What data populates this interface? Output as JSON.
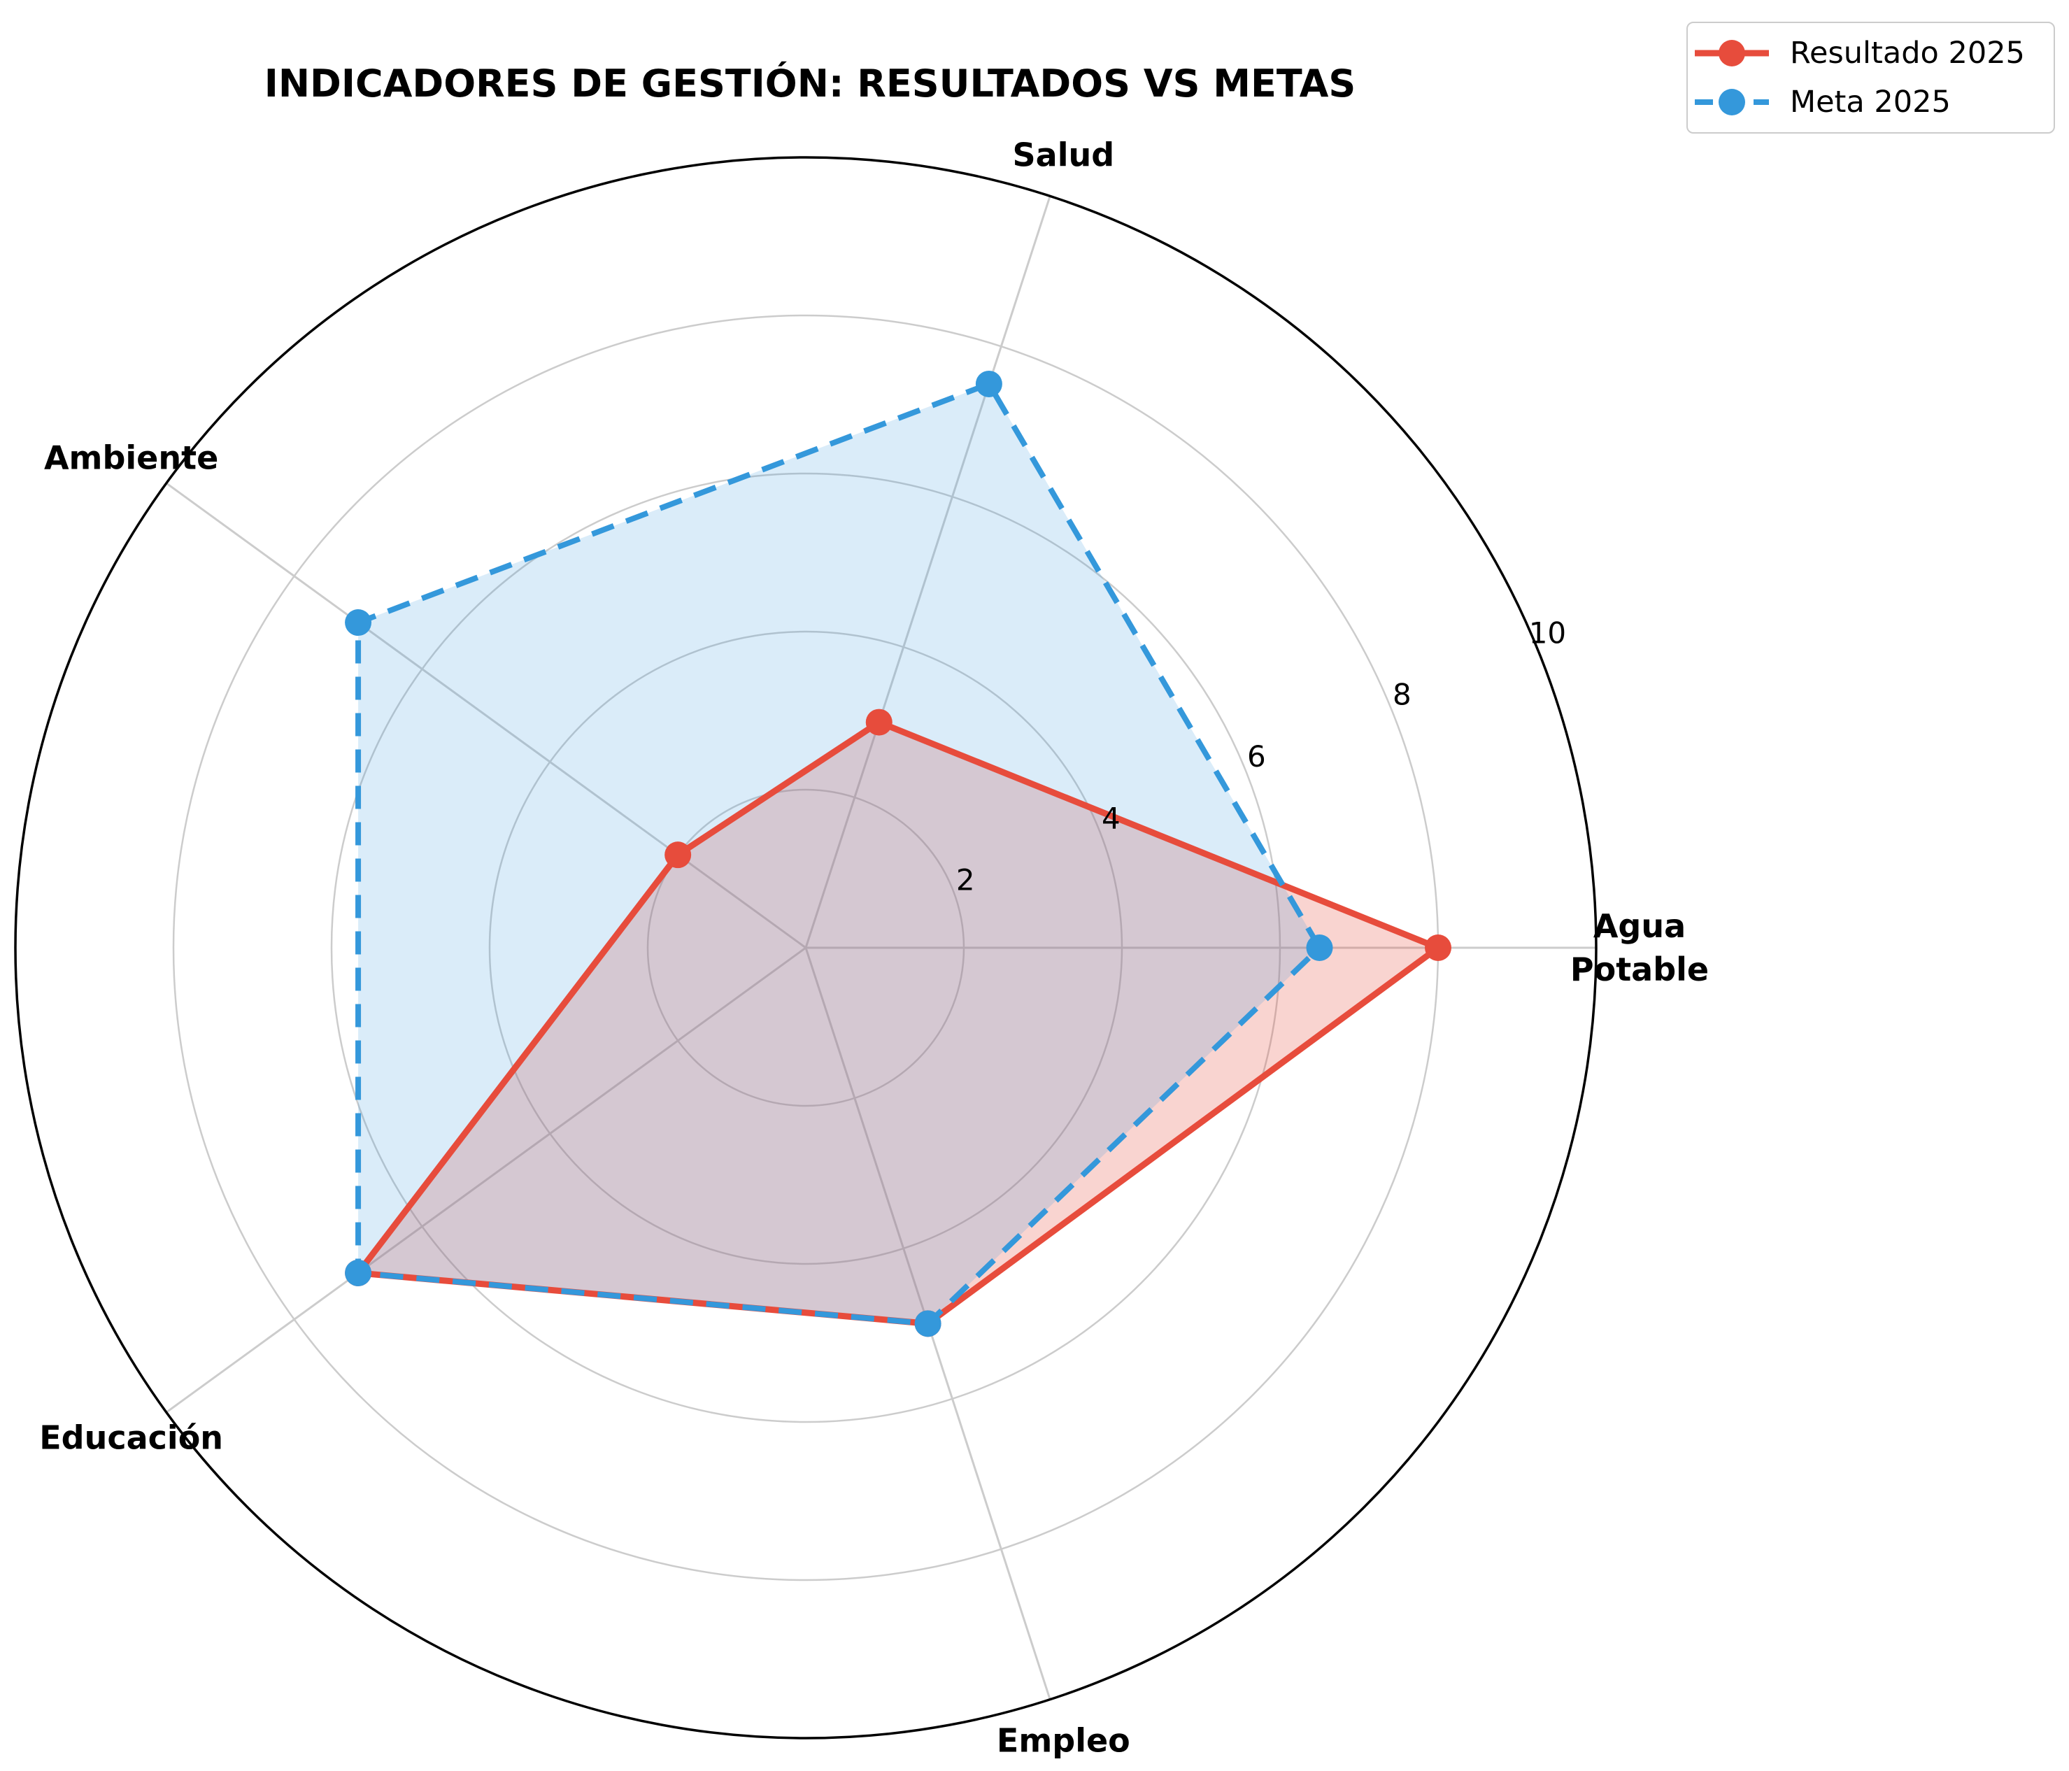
{
  "title": "INDICADORES DE GESTIÓN: RESULTADOS VS METAS",
  "chart_data": {
    "type": "radar",
    "categories": [
      "Agua\nPotable",
      "Salud",
      "Ambiente",
      "Educación",
      "Empleo"
    ],
    "category_ids": [
      "agua-potable",
      "salud",
      "ambiente",
      "educacion",
      "empleo"
    ],
    "angles_deg": [
      0,
      72,
      144,
      216,
      288
    ],
    "series": [
      {
        "name": "Resultado 2025",
        "values": [
          8,
          3,
          2,
          7,
          5
        ],
        "color": "#e74c3c",
        "fill": "rgba(231,76,60,0.24)",
        "line_style": "solid"
      },
      {
        "name": "Meta 2025",
        "values": [
          6.5,
          7.5,
          7,
          7,
          5
        ],
        "color": "#3498db",
        "fill": "rgba(52,152,219,0.18)",
        "line_style": "dashed"
      }
    ],
    "radial_ticks": [
      2,
      4,
      6,
      8,
      10
    ],
    "rlim": [
      0,
      10
    ],
    "grid": true,
    "grid_color": "#cccccc",
    "spine_color": "#000000",
    "legend_position": "upper right"
  }
}
